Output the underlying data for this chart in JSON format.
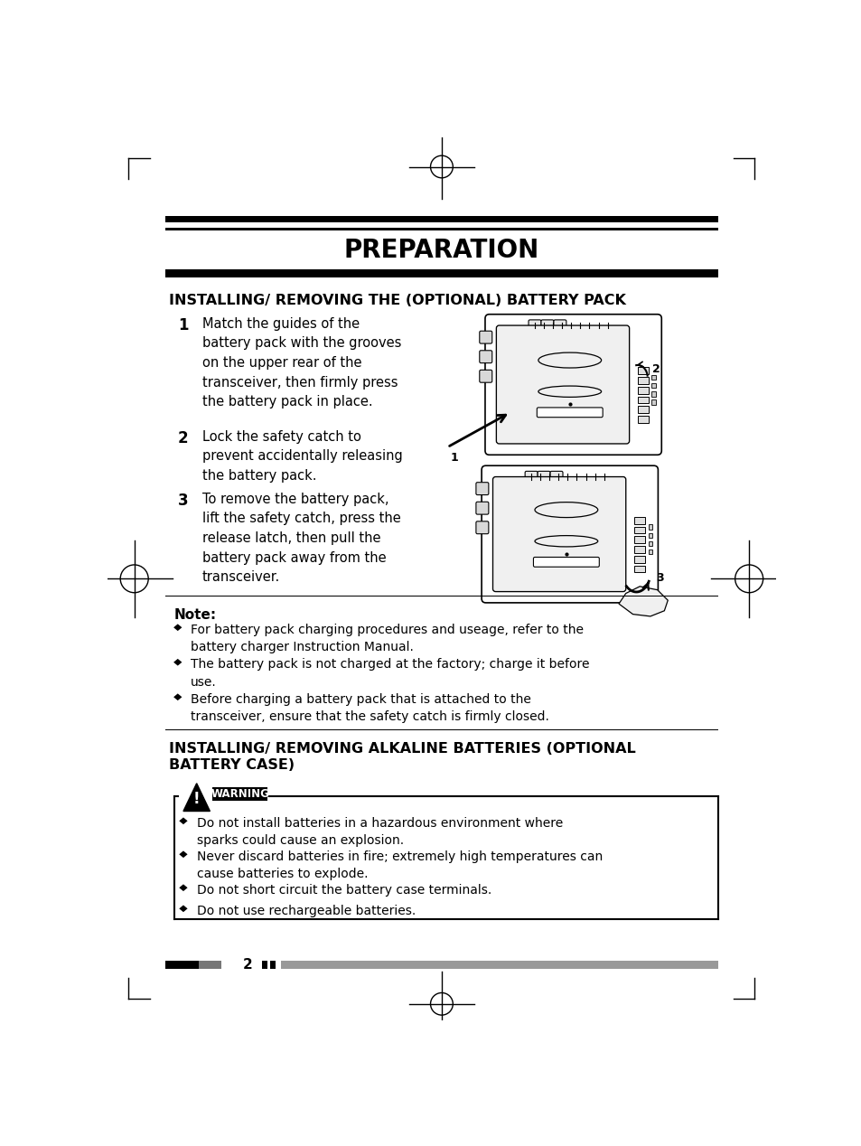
{
  "bg_color": "#ffffff",
  "title": "PREPARATION",
  "section1_title": "INSTALLING/ REMOVING THE (OPTIONAL) BATTERY PACK",
  "section2_title": "INSTALLING/ REMOVING ALKALINE BATTERIES (OPTIONAL\nBATTERY CASE)",
  "steps": [
    {
      "num": "1",
      "text": "Match the guides of the\nbattery pack with the grooves\non the upper rear of the\ntransceiver, then firmly press\nthe battery pack in place."
    },
    {
      "num": "2",
      "text": "Lock the safety catch to\nprevent accidentally releasing\nthe battery pack."
    },
    {
      "num": "3",
      "text": "To remove the battery pack,\nlift the safety catch, press the\nrelease latch, then pull the\nbattery pack away from the\ntransceiver."
    }
  ],
  "note_title": "Note:",
  "note_bullets": [
    "For battery pack charging procedures and useage, refer to the\nbattery charger Instruction Manual.",
    "The battery pack is not charged at the factory; charge it before\nuse.",
    "Before charging a battery pack that is attached to the\ntransceiver, ensure that the safety catch is firmly closed."
  ],
  "warning_bullets": [
    "Do not install batteries in a hazardous environment where\nsparks could cause an explosion.",
    "Never discard batteries in fire; extremely high temperatures can\ncause batteries to explode.",
    "Do not short circuit the battery case terminals.",
    "Do not use rechargeable batteries."
  ],
  "page_num": "2"
}
